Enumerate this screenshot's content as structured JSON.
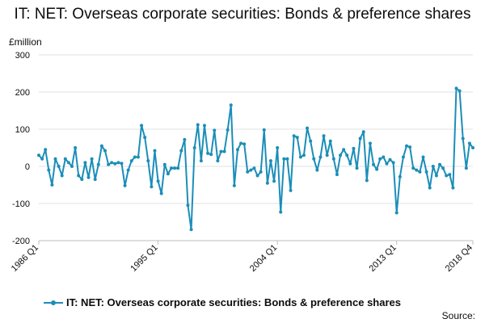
{
  "chart_data": {
    "type": "line",
    "title": "IT: NET: Overseas corporate securities: Bonds & preference shares",
    "unit_label": "£million",
    "xlabel": "",
    "ylabel": "",
    "ylim": [
      -200,
      300
    ],
    "y_ticks": [
      "300",
      "200",
      "100",
      "0",
      "-100",
      "-200"
    ],
    "x_tick_labels": [
      "1986 Q1",
      "1995 Q1",
      "2004 Q1",
      "2013 Q1",
      "2018 Q4"
    ],
    "grid": "horizontal",
    "legend_position": "bottom",
    "color": "#1b8eb8",
    "series": [
      {
        "name": "IT: NET: Overseas corporate securities: Bonds & preference shares",
        "start": "1986 Q1",
        "values": [
          30,
          20,
          45,
          -10,
          -50,
          20,
          0,
          -25,
          20,
          10,
          0,
          50,
          -25,
          -35,
          10,
          -30,
          20,
          -35,
          5,
          55,
          42,
          5,
          10,
          7,
          10,
          8,
          -52,
          -10,
          15,
          25,
          25,
          110,
          78,
          15,
          -55,
          42,
          -40,
          -73,
          5,
          -20,
          -5,
          -5,
          -5,
          42,
          72,
          -105,
          -170,
          50,
          112,
          15,
          110,
          35,
          32,
          97,
          15,
          40,
          40,
          98,
          165,
          -52,
          45,
          62,
          60,
          -15,
          -10,
          -5,
          -25,
          -15,
          98,
          -45,
          15,
          -40,
          50,
          -123,
          20,
          20,
          -65,
          82,
          78,
          25,
          30,
          103,
          68,
          20,
          -10,
          25,
          82,
          30,
          68,
          20,
          -22,
          30,
          45,
          30,
          7,
          48,
          -5,
          75,
          93,
          -38,
          62,
          5,
          -8,
          20,
          25,
          7,
          18,
          10,
          -125,
          -28,
          25,
          55,
          52,
          -5,
          -10,
          -15,
          25,
          -15,
          -58,
          0,
          -25,
          5,
          -5,
          -25,
          -22,
          -58,
          210,
          203,
          75,
          -5,
          62,
          50
        ]
      }
    ]
  },
  "footer": {
    "source_label": "Source:"
  }
}
